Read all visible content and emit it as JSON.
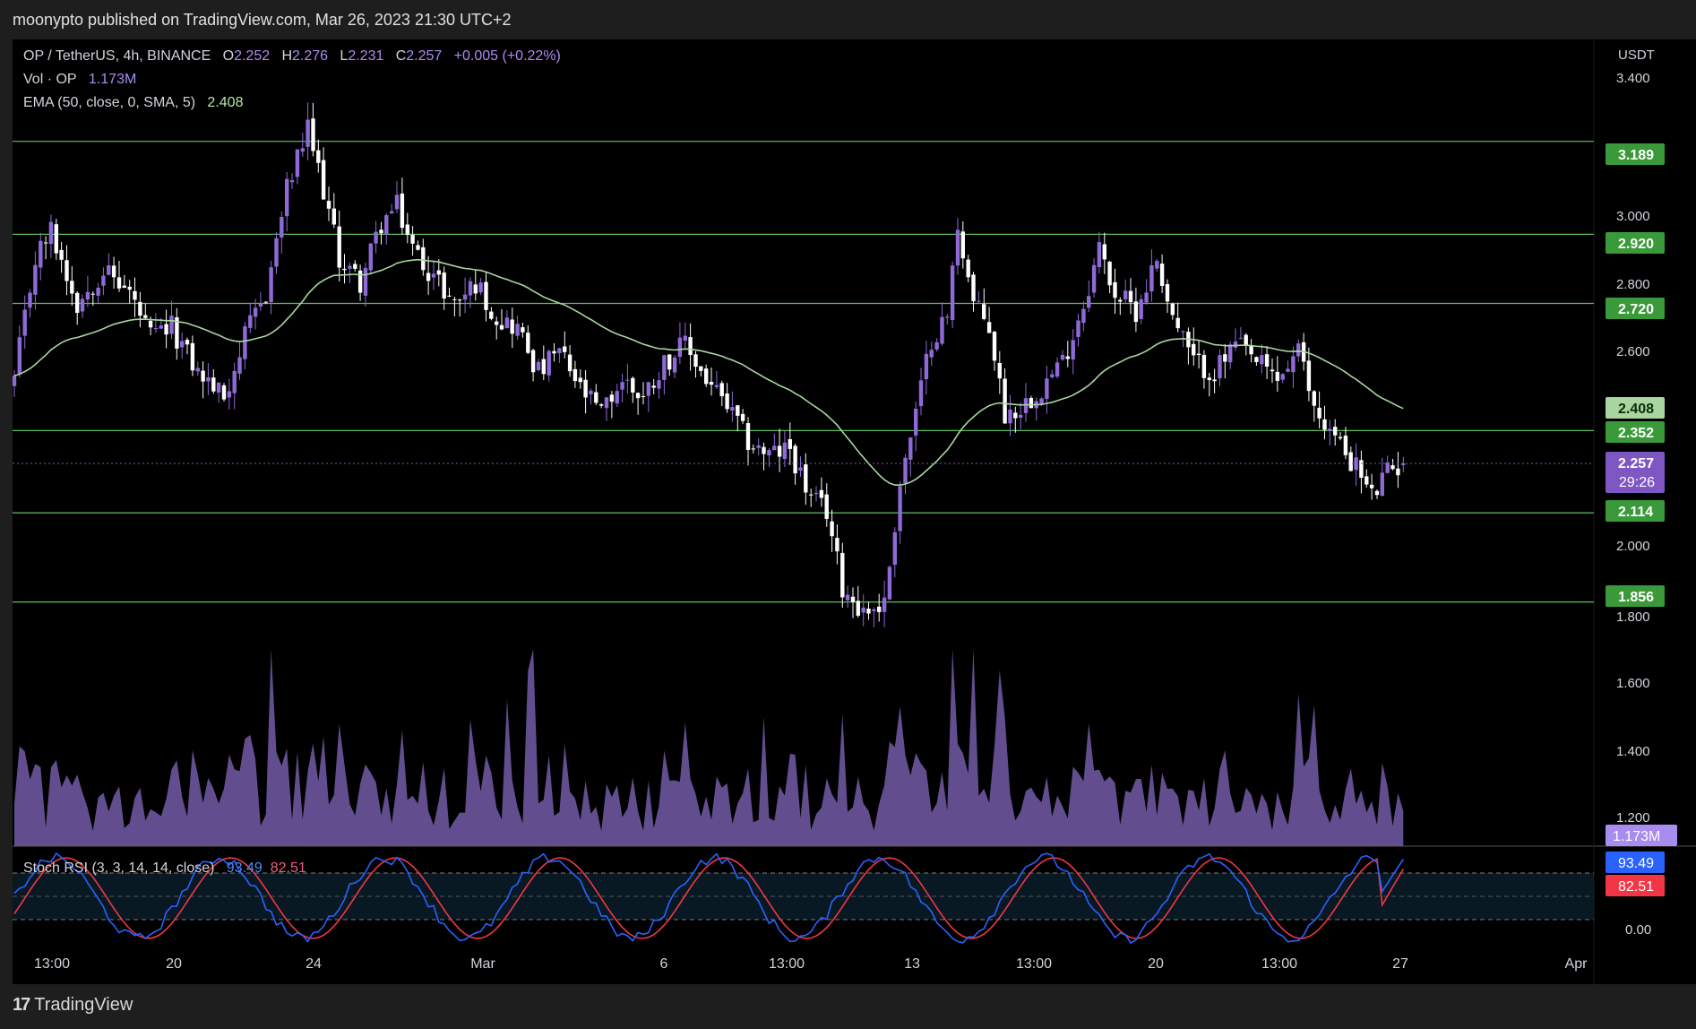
{
  "header": {
    "published": "moonypto published on TradingView.com, Mar 26, 2023 21:30 UTC+2"
  },
  "footer": {
    "brand": "TradingView",
    "logo_mark": "17"
  },
  "legend": {
    "symbol": "OP / TetherUS, 4h, BINANCE",
    "o_label": "O",
    "o": "2.252",
    "h_label": "H",
    "h": "2.276",
    "l_label": "L",
    "l": "2.231",
    "c_label": "C",
    "c": "2.257",
    "change": "+0.005 (+0.22%)",
    "vol_label": "Vol · OP",
    "vol": "1.173M",
    "ema_label": "EMA (50, close, 0, SMA, 5)",
    "ema": "2.408",
    "stoch_label": "Stoch RSI (3, 3, 14, 14, close)",
    "stoch_k": "93.49",
    "stoch_d": "82.51"
  },
  "axis": {
    "currency": "USDT",
    "price_ticks": [
      "3.400",
      "3.000",
      "2.800",
      "2.600",
      "2.000",
      "1.800",
      "1.600",
      "1.400",
      "1.200"
    ],
    "rsi_tick": "0.00",
    "time_labels": [
      "13:00",
      "20",
      "24",
      "Mar",
      "6",
      "13:00",
      "13",
      "13:00",
      "20",
      "13:00",
      "27",
      "Apr"
    ]
  },
  "badges": {
    "levels": [
      "3.189",
      "2.920",
      "2.720",
      "2.352",
      "2.114",
      "1.856"
    ],
    "ema": "2.408",
    "price": "2.257",
    "countdown": "29:26",
    "volume": "1.173M",
    "stoch_k": "93.49",
    "stoch_d": "82.51"
  },
  "colors": {
    "background": "#000000",
    "bull": "#8e6ad8",
    "bear": "#ffffff",
    "ema": "#a9d6a0",
    "level": "#5fbf5f",
    "level_badge": "#3a9a3a",
    "volume": "#7b62b3",
    "stoch_k": "#2962ff",
    "stoch_d": "#f23645",
    "price_badge": "#7e57c2"
  },
  "chart_data": {
    "type": "candlestick",
    "symbol": "OP / TetherUS",
    "timeframe": "4h",
    "y_unit": "USDT",
    "price_range": [
      1.0,
      3.45
    ],
    "horizontal_levels": [
      3.189,
      2.92,
      2.72,
      2.352,
      2.114,
      1.856
    ],
    "ema_current": 2.408,
    "last_price": 2.257,
    "ohlc_last": {
      "open": 2.252,
      "high": 2.276,
      "low": 2.231,
      "close": 2.257
    },
    "close_path": [
      [
        0,
        2.5
      ],
      [
        4,
        2.85
      ],
      [
        7,
        2.93
      ],
      [
        12,
        2.72
      ],
      [
        17,
        2.82
      ],
      [
        22,
        2.75
      ],
      [
        26,
        2.62
      ],
      [
        30,
        2.65
      ],
      [
        35,
        2.52
      ],
      [
        40,
        2.45
      ],
      [
        44,
        2.62
      ],
      [
        48,
        2.75
      ],
      [
        52,
        3.05
      ],
      [
        56,
        3.22
      ],
      [
        59,
        3.05
      ],
      [
        62,
        2.85
      ],
      [
        66,
        2.78
      ],
      [
        70,
        2.95
      ],
      [
        73,
        3.0
      ],
      [
        76,
        2.88
      ],
      [
        80,
        2.8
      ],
      [
        84,
        2.72
      ],
      [
        88,
        2.78
      ],
      [
        92,
        2.68
      ],
      [
        96,
        2.65
      ],
      [
        100,
        2.52
      ],
      [
        104,
        2.58
      ],
      [
        108,
        2.47
      ],
      [
        112,
        2.4
      ],
      [
        116,
        2.5
      ],
      [
        120,
        2.45
      ],
      [
        124,
        2.55
      ],
      [
        128,
        2.6
      ],
      [
        132,
        2.5
      ],
      [
        136,
        2.42
      ],
      [
        140,
        2.32
      ],
      [
        144,
        2.28
      ],
      [
        148,
        2.3
      ],
      [
        152,
        2.15
      ],
      [
        155,
        2.12
      ],
      [
        158,
        1.9
      ],
      [
        162,
        1.83
      ],
      [
        166,
        1.85
      ],
      [
        169,
        2.2
      ],
      [
        172,
        2.4
      ],
      [
        175,
        2.62
      ],
      [
        178,
        2.68
      ],
      [
        180,
        2.95
      ],
      [
        183,
        2.72
      ],
      [
        186,
        2.65
      ],
      [
        189,
        2.4
      ],
      [
        192,
        2.42
      ],
      [
        196,
        2.48
      ],
      [
        200,
        2.55
      ],
      [
        204,
        2.72
      ],
      [
        207,
        2.88
      ],
      [
        210,
        2.75
      ],
      [
        214,
        2.7
      ],
      [
        218,
        2.85
      ],
      [
        221,
        2.68
      ],
      [
        225,
        2.55
      ],
      [
        229,
        2.52
      ],
      [
        233,
        2.6
      ],
      [
        237,
        2.55
      ],
      [
        241,
        2.5
      ],
      [
        245,
        2.58
      ],
      [
        248,
        2.42
      ],
      [
        252,
        2.33
      ],
      [
        256,
        2.25
      ],
      [
        259,
        2.16
      ],
      [
        262,
        2.23
      ],
      [
        265,
        2.257
      ]
    ],
    "volume_current": "1.173M",
    "stoch_rsi": {
      "k": 93.49,
      "d": 82.51,
      "bands": [
        80,
        50,
        20
      ],
      "range": [
        0,
        100
      ]
    }
  }
}
